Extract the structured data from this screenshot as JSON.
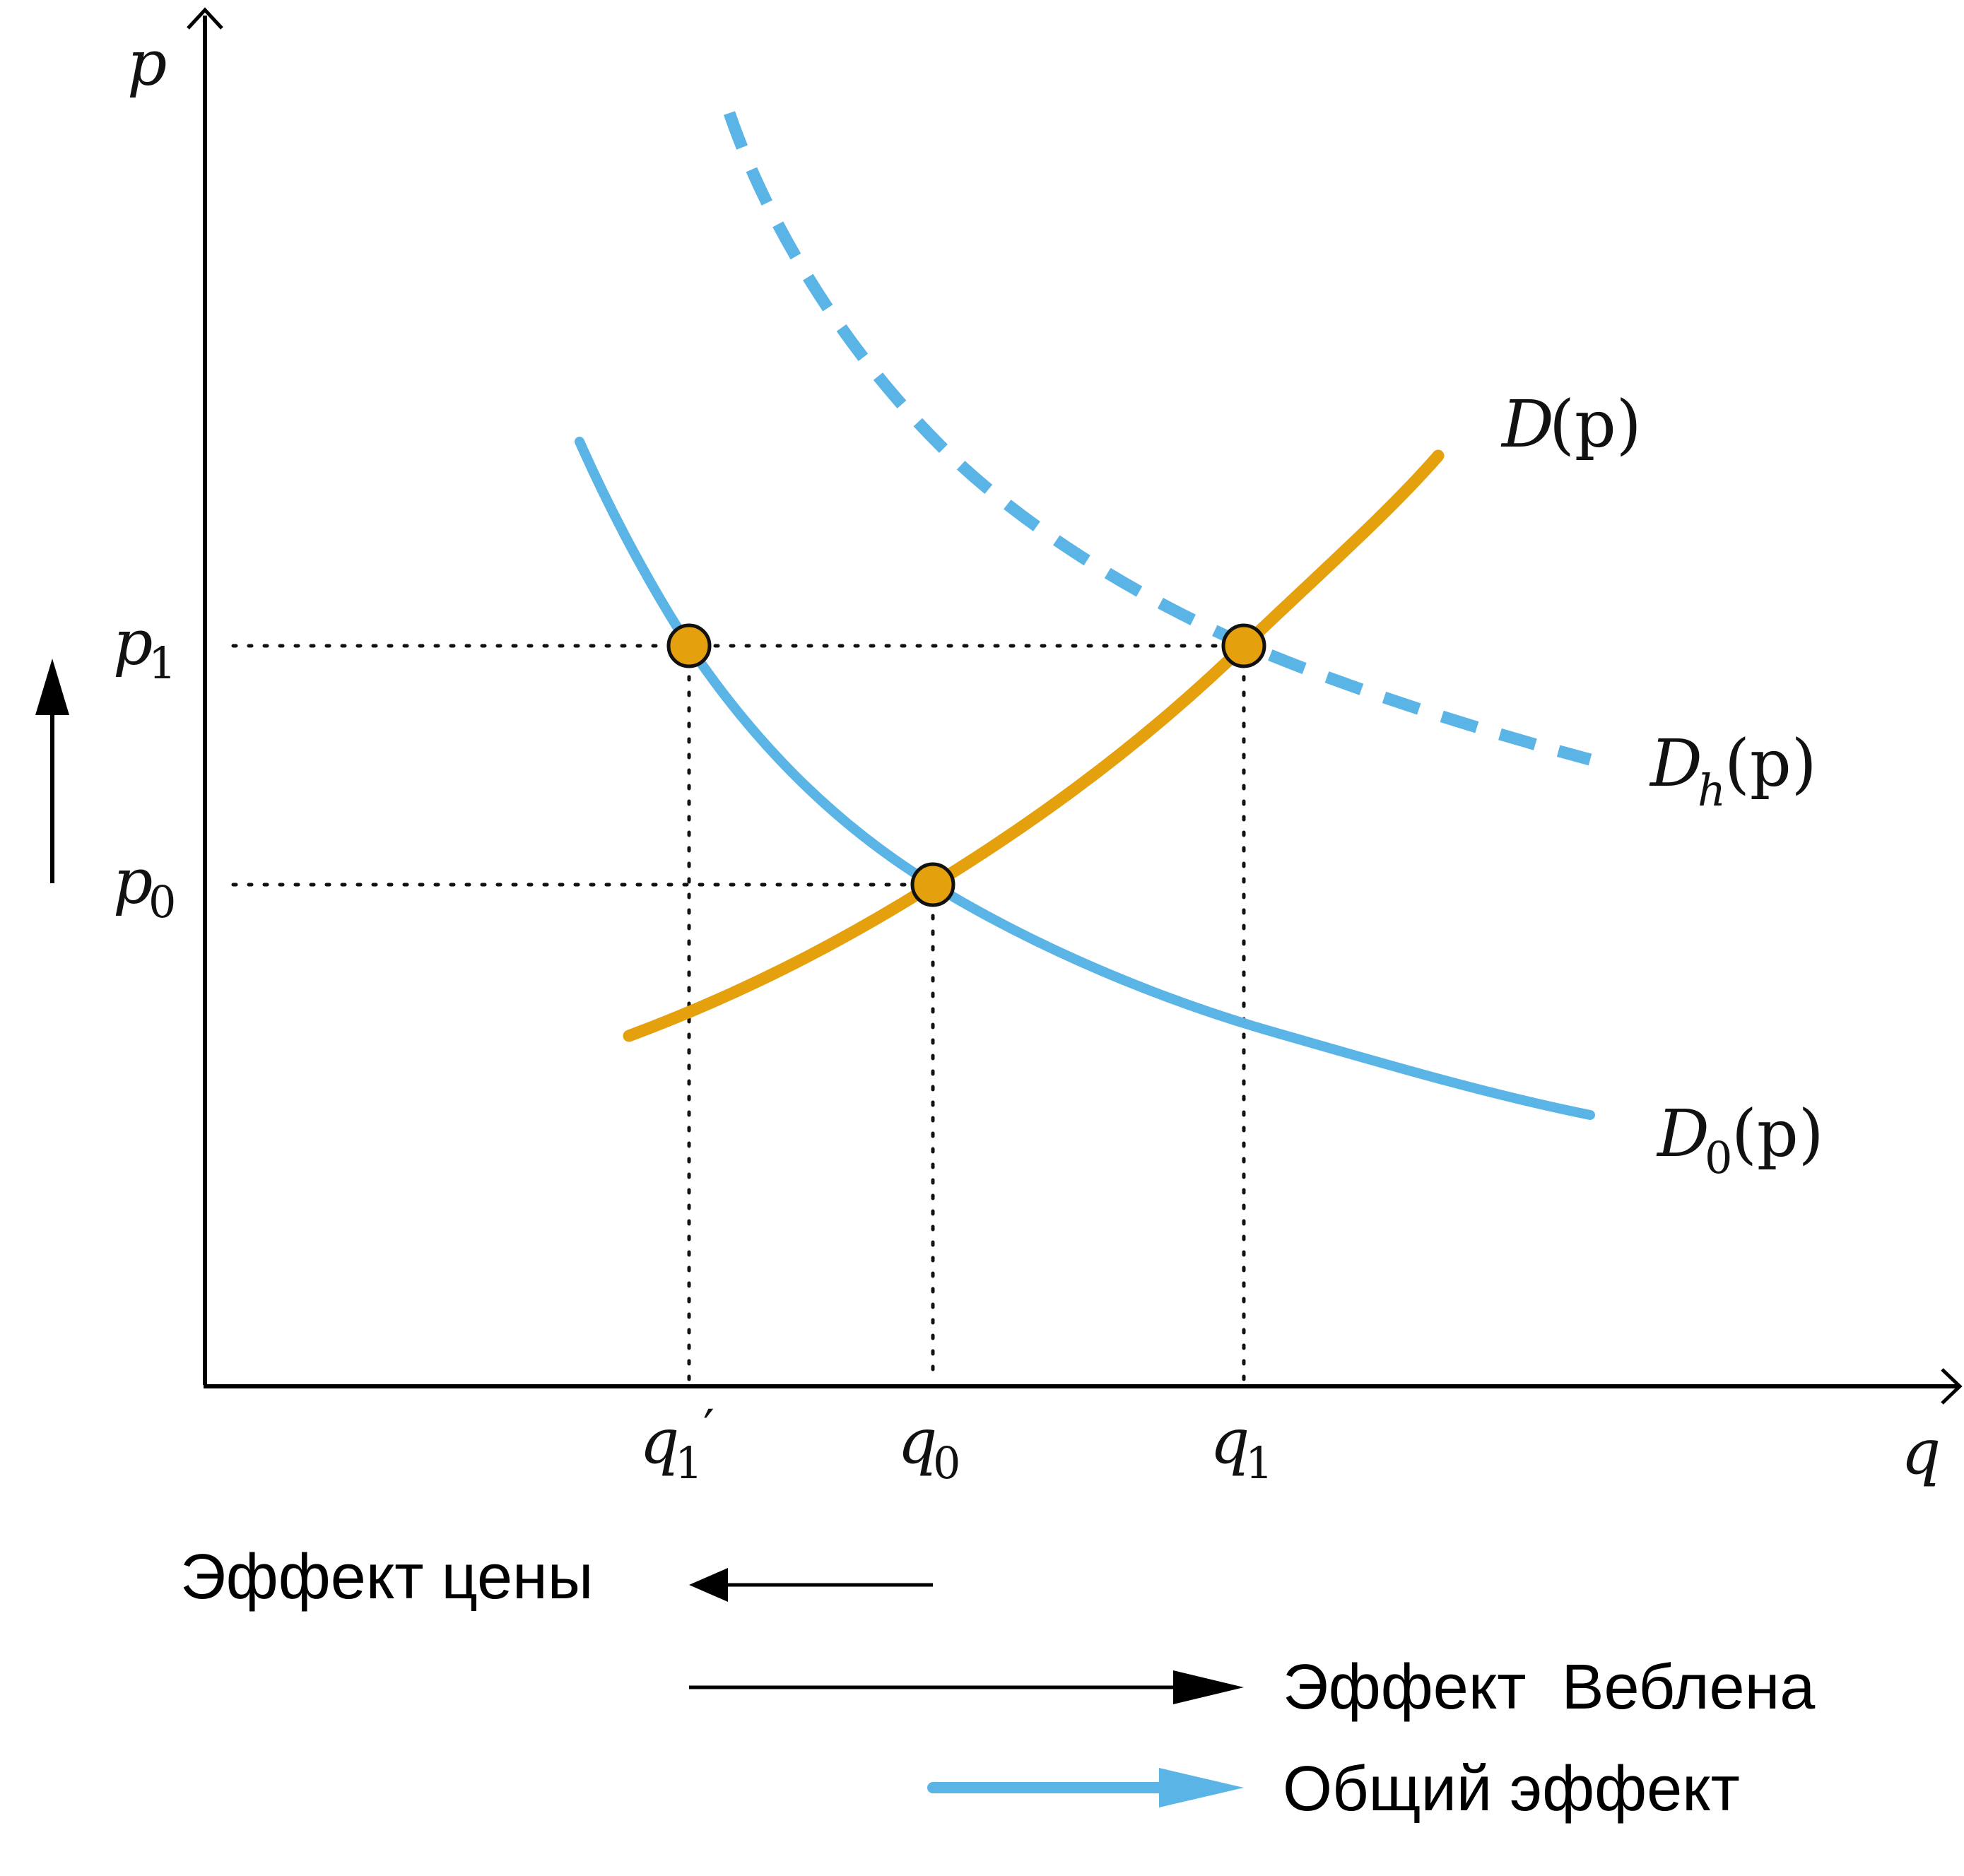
{
  "colors": {
    "blue": "#5ab4e5",
    "orange": "#e5a00d",
    "axis": "#000000"
  },
  "axes": {
    "y_label": "p",
    "x_label": "q"
  },
  "price_ticks": {
    "p1": {
      "base": "p",
      "sub": "1"
    },
    "p0": {
      "base": "p",
      "sub": "0"
    }
  },
  "quantity_ticks": {
    "q1_prime": {
      "base": "q",
      "sub": "1",
      "mark": "′"
    },
    "q0": {
      "base": "q",
      "sub": "0"
    },
    "q1": {
      "base": "q",
      "sub": "1"
    }
  },
  "curves": {
    "supply": {
      "base": "D",
      "sub": "",
      "arg": "(p)",
      "style": "solid",
      "color": "orange"
    },
    "hype": {
      "base": "D",
      "sub": "h",
      "arg": "(p)",
      "style": "dashed",
      "color": "blue"
    },
    "base_demand": {
      "base": "D",
      "sub": "0",
      "arg": "(p)",
      "style": "solid",
      "color": "blue"
    }
  },
  "points": [
    {
      "id": "q1_prime_p1"
    },
    {
      "id": "q1_p1"
    },
    {
      "id": "q0_p0"
    }
  ],
  "side_arrow": {
    "direction": "up",
    "meaning": "price increase"
  },
  "legend": {
    "price_effect": "Эффект цены",
    "veblen_effect": "Эффект  Веблена",
    "total_effect": "Общий эффект"
  }
}
